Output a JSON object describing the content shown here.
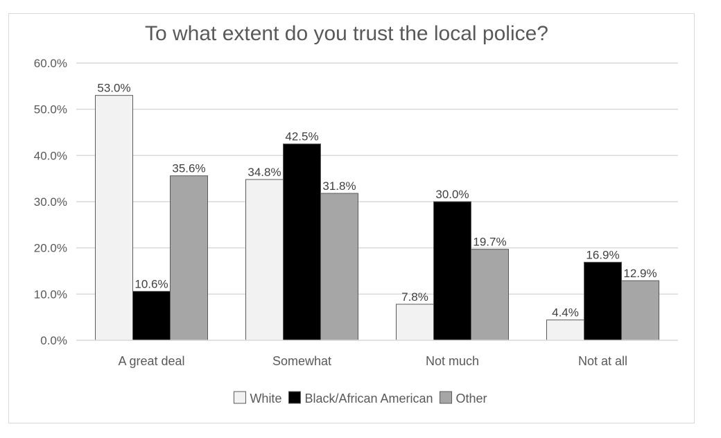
{
  "chart_data": {
    "type": "bar",
    "title": "To what extent do you trust the local police?",
    "xlabel": "",
    "ylabel": "",
    "categories": [
      "A great deal",
      "Somewhat",
      "Not much",
      "Not at all"
    ],
    "series": [
      {
        "name": "White",
        "values": [
          53.0,
          34.8,
          7.8,
          4.4
        ],
        "labels": [
          "53.0%",
          "34.8%",
          "7.8%",
          "4.4%"
        ],
        "color": "#f2f2f2"
      },
      {
        "name": "Black/African American",
        "values": [
          10.6,
          42.5,
          30.0,
          16.9
        ],
        "labels": [
          "10.6%",
          "42.5%",
          "30.0%",
          "16.9%"
        ],
        "color": "#000000"
      },
      {
        "name": "Other",
        "values": [
          35.6,
          31.8,
          19.7,
          12.9
        ],
        "labels": [
          "35.6%",
          "31.8%",
          "19.7%",
          "12.9%"
        ],
        "color": "#a6a6a6"
      }
    ],
    "ylim": [
      0,
      60
    ],
    "yticks": [
      0,
      10,
      20,
      30,
      40,
      50,
      60
    ],
    "ytick_labels": [
      "0.0%",
      "10.0%",
      "20.0%",
      "30.0%",
      "40.0%",
      "50.0%",
      "60.0%"
    ],
    "grid": true,
    "legend_position": "bottom"
  }
}
